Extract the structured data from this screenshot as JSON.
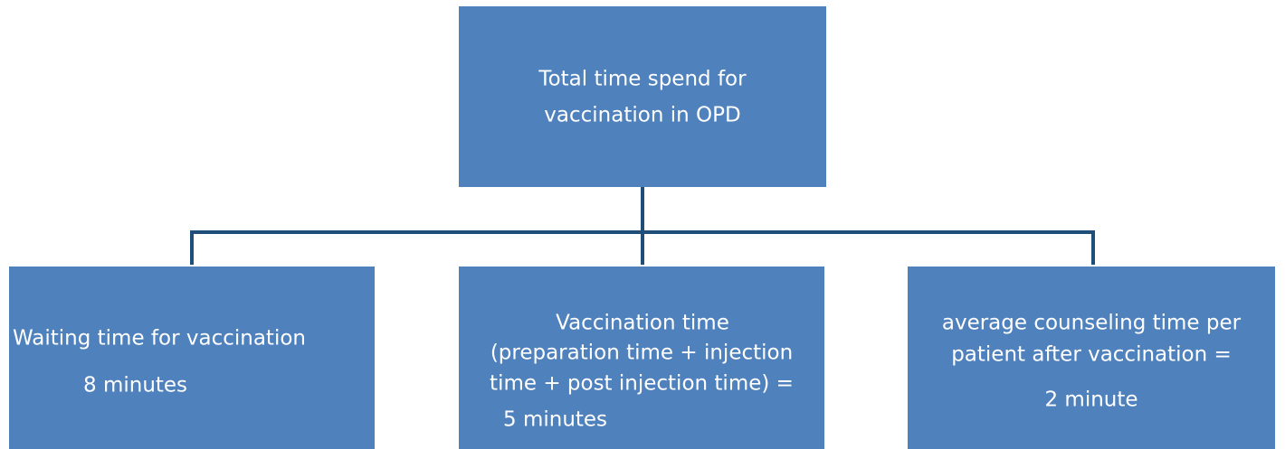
{
  "nodes": [
    {
      "lines": [
        "Total time spend for",
        "vaccination in OPD"
      ]
    },
    {
      "lines": [
        "Waiting time for vaccination",
        "8 minutes"
      ]
    },
    {
      "lines": [
        "Vaccination time",
        "(preparation time + injection",
        "time + post injection time) =",
        "5 minutes"
      ]
    },
    {
      "lines": [
        "average counseling time per",
        "patient after vaccination =",
        "2 minute"
      ]
    }
  ]
}
